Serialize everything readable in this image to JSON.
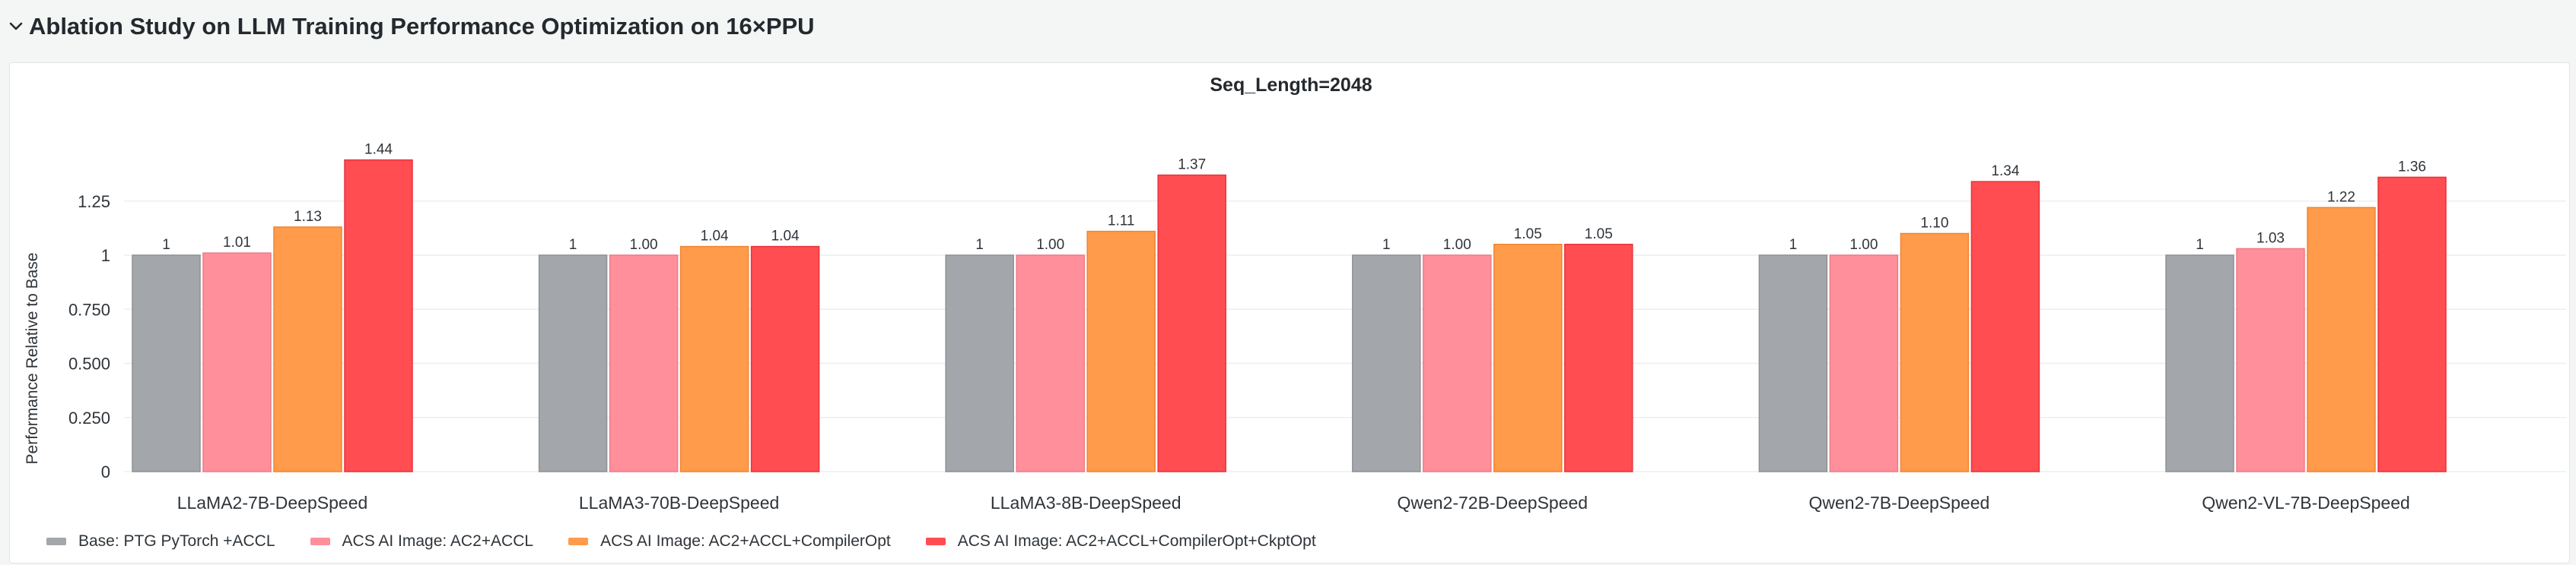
{
  "section": {
    "title": "Ablation Study on LLM Training Performance Optimization on 16×PPU",
    "chevron_icon": "chevron-down-icon"
  },
  "chart_data": {
    "type": "bar",
    "title": "Seq_Length=2048",
    "xlabel": "",
    "ylabel": "Performance Relative to Base",
    "ylim": [
      0,
      1.5
    ],
    "yticks": [
      0,
      0.25,
      0.5,
      0.75,
      1,
      1.25
    ],
    "ytick_labels": [
      "0",
      "0.250",
      "0.500",
      "0.750",
      "1",
      "1.25"
    ],
    "grid": true,
    "legend_position": "bottom-left",
    "categories": [
      "LLaMA2-7B-DeepSpeed",
      "LLaMA3-70B-DeepSpeed",
      "LLaMA3-8B-DeepSpeed",
      "Qwen2-72B-DeepSpeed",
      "Qwen2-7B-DeepSpeed",
      "Qwen2-VL-7B-DeepSpeed"
    ],
    "series": [
      {
        "name": "Base: PTG PyTorch +ACCL",
        "color": "#a3a6aa",
        "values": [
          1,
          1,
          1,
          1,
          1,
          1
        ],
        "labels": [
          "1",
          "1",
          "1",
          "1",
          "1",
          "1"
        ]
      },
      {
        "name": "ACS AI Image: AC2+ACCL",
        "color": "#ff8f9b",
        "values": [
          1.01,
          1.0,
          1.0,
          1.0,
          1.0,
          1.03
        ],
        "labels": [
          "1.01",
          "1.00",
          "1.00",
          "1.00",
          "1.00",
          "1.03"
        ]
      },
      {
        "name": "ACS AI Image: AC2+ACCL+CompilerOpt",
        "color": "#ff9b4a",
        "values": [
          1.13,
          1.04,
          1.11,
          1.05,
          1.1,
          1.22
        ],
        "labels": [
          "1.13",
          "1.04",
          "1.11",
          "1.05",
          "1.10",
          "1.22"
        ]
      },
      {
        "name": "ACS AI Image: AC2+ACCL+CompilerOpt+CkptOpt",
        "color": "#ff4d52",
        "values": [
          1.44,
          1.04,
          1.37,
          1.05,
          1.34,
          1.36
        ],
        "labels": [
          "1.44",
          "1.04",
          "1.37",
          "1.05",
          "1.34",
          "1.36"
        ]
      }
    ]
  }
}
